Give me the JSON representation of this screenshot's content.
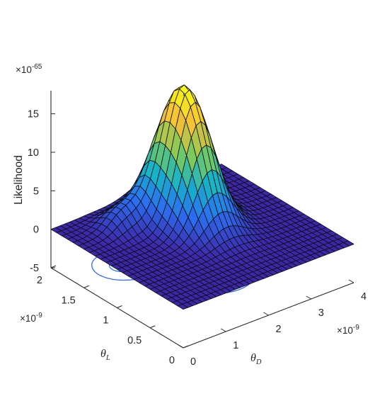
{
  "chart_data": {
    "type": "surface",
    "title": "",
    "zlabel": "Likelihood",
    "z_exponent_label": "×10",
    "z_exponent": "-65",
    "z_scale": 1e-65,
    "zlim": [
      -5,
      18
    ],
    "zticks": [
      "-5",
      "0",
      "5",
      "10",
      "15"
    ],
    "x": {
      "label_symbol": "θ",
      "label_sub": "D",
      "exponent_label": "×10",
      "exponent": "-9",
      "lim": [
        0,
        4
      ],
      "ticks": [
        "0",
        "1",
        "2",
        "3",
        "4"
      ]
    },
    "y": {
      "label_symbol": "θ",
      "label_sub": "L",
      "exponent_label": "×10",
      "exponent": "-9",
      "lim": [
        0,
        2
      ],
      "ticks": [
        "0",
        "0.5",
        "1",
        "1.5",
        "2"
      ]
    },
    "colormap": [
      "#3e26a8",
      "#2b6ff2",
      "#16b4c7",
      "#80cb58",
      "#f5be3a",
      "#f9fb0e"
    ],
    "grid": false,
    "peak": {
      "theta_D": 2.2,
      "theta_L": 1.35,
      "likelihood": 16.5
    },
    "ridge_note": "bump near theta_L 1.6 along theta_D 0.7 to 2.4",
    "contour_levels": [
      0.5,
      2,
      4,
      7,
      11,
      14
    ]
  }
}
